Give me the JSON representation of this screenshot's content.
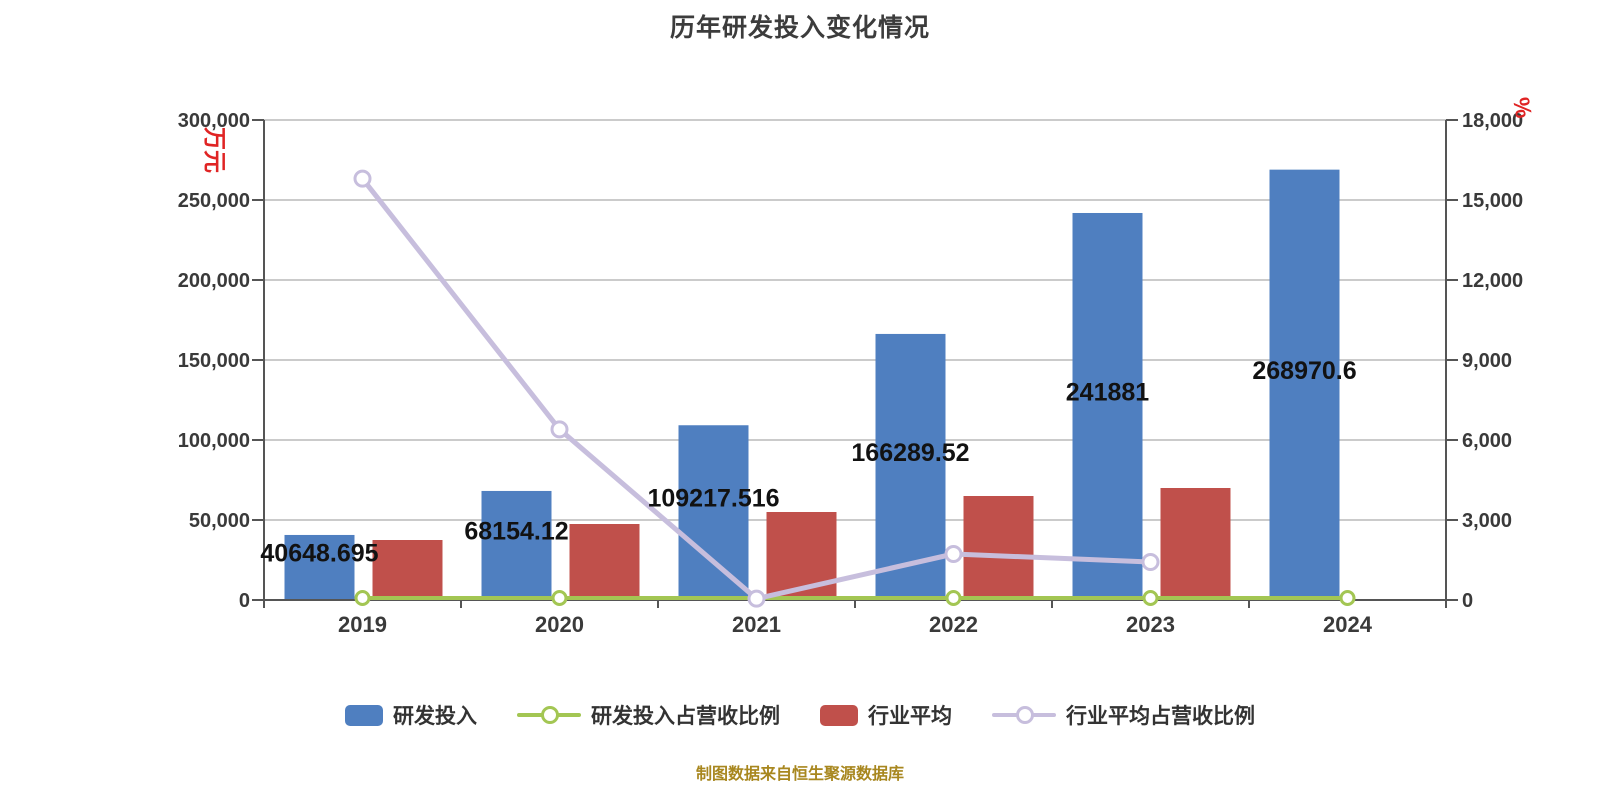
{
  "title": "历年研发投入变化情况",
  "caption": "制图数据来自恒生聚源数据库",
  "left_axis": {
    "unit": "万元",
    "ticks": [
      "300,000",
      "250,000",
      "200,000",
      "150,000",
      "100,000",
      "50,000",
      "0"
    ],
    "min": 0,
    "max": 300000
  },
  "right_axis": {
    "unit": "%",
    "ticks": [
      "18,000",
      "15,000",
      "12,000",
      "9,000",
      "6,000",
      "3,000",
      "0"
    ],
    "min": 0,
    "max": 18000
  },
  "chart_data": {
    "type": "bar+line combo",
    "categories": [
      "2019",
      "2020",
      "2021",
      "2022",
      "2023",
      "2024"
    ],
    "grid": true,
    "legend_position": "bottom",
    "series": [
      {
        "name": "研发投入",
        "type": "bar",
        "axis": "left",
        "color": "#4F7FC0",
        "values": [
          40648.695,
          68154.12,
          109217.516,
          166289.52,
          241881,
          268970.6
        ],
        "labels": [
          "40648.695",
          "68154.12",
          "109217.516",
          "166289.52",
          "241881",
          "268970.6"
        ]
      },
      {
        "name": "行业平均",
        "type": "bar",
        "axis": "left",
        "color": "#C0504B",
        "values": [
          37500,
          47500,
          55000,
          65000,
          70000,
          null
        ],
        "values_note": "estimated from bar heights; no data label shown; no 2024 bar"
      },
      {
        "name": "研发投入占营收比例",
        "type": "line",
        "axis": "right",
        "color": "#A3C653",
        "values": [
          0,
          0,
          0,
          0,
          0,
          0
        ],
        "values_note": "markers sit at ~0 on the 0-18,000 axis; exact values not readable"
      },
      {
        "name": "行业平均占营收比例",
        "type": "line",
        "axis": "right",
        "color": "#C7BEDD",
        "values": [
          15800,
          6400,
          50,
          1725,
          1425,
          null
        ],
        "values_note": "estimated from marker positions; no 2024 point"
      }
    ]
  },
  "legend": {
    "items": [
      {
        "label": "研发投入",
        "type": "bar",
        "color": "#4F7FC0"
      },
      {
        "label": "研发投入占营收比例",
        "type": "line",
        "color": "#A3C653"
      },
      {
        "label": "行业平均",
        "type": "bar",
        "color": "#C0504B"
      },
      {
        "label": "行业平均占营收比例",
        "type": "line",
        "color": "#C7BEDD"
      }
    ]
  },
  "style_colors": {
    "grid": "#CBCBCB",
    "axis": "#555555",
    "tick_text": "#3A3A3A",
    "title_text": "#3C3C3C",
    "data_label_text": "#121212",
    "caption_text": "#A8871F",
    "unit_text": "#E02424",
    "marker_fill": "#FFFFFF"
  }
}
